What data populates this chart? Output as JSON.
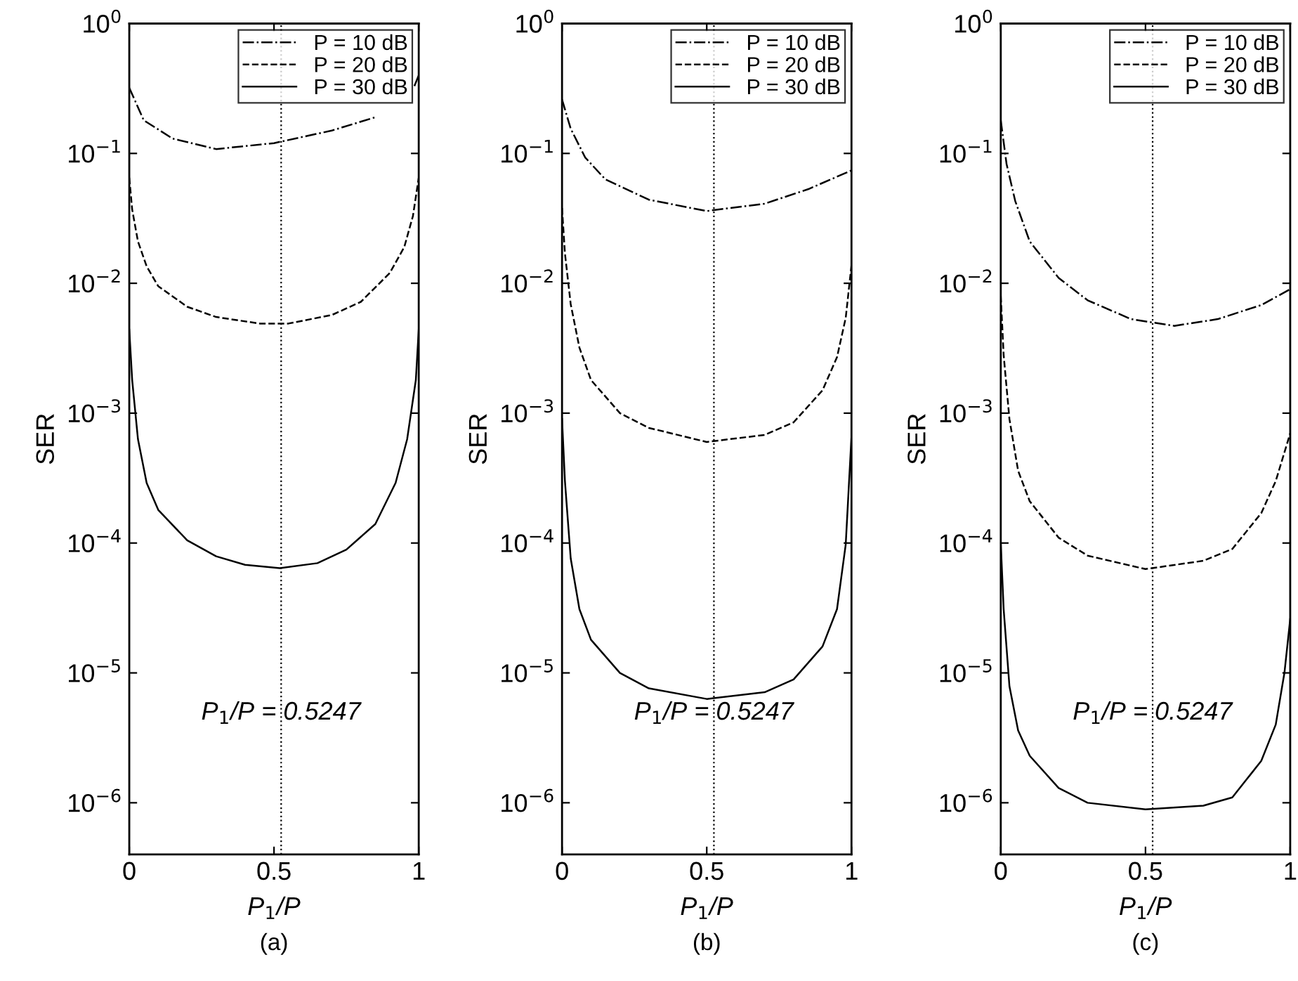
{
  "chart_data": [
    {
      "type": "line",
      "title": "(a)",
      "xlabel": "P$_{1}$/P",
      "ylabel": "SER",
      "log": "y",
      "xlim": [
        0,
        1
      ],
      "ylim": [
        4e-07,
        1
      ],
      "xticks": [
        0,
        0.5,
        1
      ],
      "yticks": [
        {
          "value": 1e-06,
          "label": "10$^{−6}$"
        },
        {
          "value": 1e-05,
          "label": "10$^{−5}$"
        },
        {
          "value": 0.0001,
          "label": "10$^{−4}$"
        },
        {
          "value": 0.001,
          "label": "10$^{−3}$"
        },
        {
          "value": 0.01,
          "label": "10$^{−2}$"
        },
        {
          "value": 0.1,
          "label": "10$^{−1}$"
        },
        {
          "value": 1,
          "label": "10$^{0}$"
        }
      ],
      "legend": "top right",
      "grid": false,
      "ref_lines": [
        {
          "axis": "x",
          "value": 0.5247,
          "label": "P$_{1}$/P = 0.5247",
          "color": "#000000",
          "line_style": "dotted"
        }
      ],
      "series": [
        {
          "name": "P = 10 dB",
          "color": "#000000",
          "line_style": "dashdot",
          "x": [
            0,
            0.05,
            0.15,
            0.3,
            0.5,
            0.7,
            0.85,
            0.9,
            0.985,
            1.0
          ],
          "values": [
            0.32,
            0.18,
            0.13,
            0.108,
            0.12,
            0.15,
            0.19,
            null,
            0.33,
            0.4
          ]
        },
        {
          "name": "P = 20 dB",
          "color": "#000000",
          "line_style": "dashed",
          "x": [
            0,
            0.01,
            0.03,
            0.06,
            0.1,
            0.2,
            0.3,
            0.45,
            0.55,
            0.7,
            0.8,
            0.9,
            0.95,
            0.98,
            1.0
          ],
          "values": [
            0.065,
            0.037,
            0.021,
            0.0135,
            0.0095,
            0.0066,
            0.0055,
            0.0049,
            0.0049,
            0.0057,
            0.0072,
            0.012,
            0.019,
            0.033,
            0.065
          ]
        },
        {
          "name": "P = 30 dB",
          "color": "#000000",
          "line_style": "solid",
          "x": [
            0,
            0.01,
            0.03,
            0.06,
            0.1,
            0.2,
            0.3,
            0.4,
            0.52,
            0.65,
            0.75,
            0.85,
            0.92,
            0.96,
            0.99,
            1.0
          ],
          "values": [
            0.0044,
            0.0018,
            0.00063,
            0.00029,
            0.00018,
            0.000105,
            7.9e-05,
            6.8e-05,
            6.4e-05,
            7e-05,
            8.9e-05,
            0.00014,
            0.00029,
            0.00063,
            0.0018,
            0.0044
          ]
        }
      ]
    },
    {
      "type": "line",
      "title": "(b)",
      "xlabel": "P$_{1}$/P",
      "ylabel": "SER",
      "log": "y",
      "xlim": [
        0,
        1
      ],
      "ylim": [
        4e-07,
        1
      ],
      "xticks": [
        0,
        0.5,
        1
      ],
      "yticks": [
        {
          "value": 1e-06,
          "label": "10$^{−6}$"
        },
        {
          "value": 1e-05,
          "label": "10$^{−5}$"
        },
        {
          "value": 0.0001,
          "label": "10$^{−4}$"
        },
        {
          "value": 0.001,
          "label": "10$^{−3}$"
        },
        {
          "value": 0.01,
          "label": "10$^{−2}$"
        },
        {
          "value": 0.1,
          "label": "10$^{−1}$"
        },
        {
          "value": 1,
          "label": "10$^{0}$"
        }
      ],
      "legend": "top right",
      "grid": false,
      "ref_lines": [
        {
          "axis": "x",
          "value": 0.5247,
          "label": "P$_{1}$/P = 0.5247",
          "color": "#000000",
          "line_style": "dotted"
        }
      ],
      "series": [
        {
          "name": "P = 10 dB",
          "color": "#000000",
          "line_style": "dashdot",
          "x": [
            0,
            0.03,
            0.08,
            0.15,
            0.3,
            0.5,
            0.7,
            0.85,
            1.0
          ],
          "values": [
            0.26,
            0.155,
            0.093,
            0.063,
            0.044,
            0.036,
            0.041,
            0.053,
            0.074
          ]
        },
        {
          "name": "P = 20 dB",
          "color": "#000000",
          "line_style": "dashed",
          "x": [
            0,
            0.01,
            0.03,
            0.06,
            0.1,
            0.2,
            0.3,
            0.5,
            0.7,
            0.8,
            0.9,
            0.95,
            0.98,
            1.0
          ],
          "values": [
            0.038,
            0.017,
            0.0069,
            0.0032,
            0.0018,
            0.001,
            0.00077,
            0.0006,
            0.00068,
            0.00085,
            0.0015,
            0.0027,
            0.0054,
            0.0138
          ]
        },
        {
          "name": "P = 30 dB",
          "color": "#000000",
          "line_style": "solid",
          "x": [
            0,
            0.01,
            0.03,
            0.06,
            0.1,
            0.2,
            0.3,
            0.5,
            0.7,
            0.8,
            0.9,
            0.95,
            0.98,
            1.0
          ],
          "values": [
            0.0009,
            0.0003,
            7.6e-05,
            3.1e-05,
            1.8e-05,
            1e-05,
            7.6e-06,
            6.3e-06,
            7.1e-06,
            8.9e-06,
            1.6e-05,
            3.1e-05,
            9.7e-05,
            0.00066
          ]
        }
      ]
    },
    {
      "type": "line",
      "title": "(c)",
      "xlabel": "P$_{1}$/P",
      "ylabel": "SER",
      "log": "y",
      "xlim": [
        0,
        1
      ],
      "ylim": [
        4e-07,
        1
      ],
      "xticks": [
        0,
        0.5,
        1
      ],
      "yticks": [
        {
          "value": 1e-06,
          "label": "10$^{−6}$"
        },
        {
          "value": 1e-05,
          "label": "10$^{−5}$"
        },
        {
          "value": 0.0001,
          "label": "10$^{−4}$"
        },
        {
          "value": 0.001,
          "label": "10$^{−3}$"
        },
        {
          "value": 0.01,
          "label": "10$^{−2}$"
        },
        {
          "value": 0.1,
          "label": "10$^{−1}$"
        },
        {
          "value": 1,
          "label": "10$^{0}$"
        }
      ],
      "legend": "top right",
      "grid": false,
      "ref_lines": [
        {
          "axis": "x",
          "value": 0.5247,
          "label": "P$_{1}$/P = 0.5247",
          "color": "#000000",
          "line_style": "dotted"
        }
      ],
      "series": [
        {
          "name": "P = 10 dB",
          "color": "#000000",
          "line_style": "dashdot",
          "x": [
            0,
            0.02,
            0.05,
            0.1,
            0.2,
            0.3,
            0.45,
            0.6,
            0.75,
            0.9,
            1.0
          ],
          "values": [
            0.18,
            0.083,
            0.043,
            0.021,
            0.011,
            0.0074,
            0.0053,
            0.0047,
            0.0053,
            0.0068,
            0.009
          ]
        },
        {
          "name": "P = 20 dB",
          "color": "#000000",
          "line_style": "dashed",
          "x": [
            0,
            0.01,
            0.03,
            0.06,
            0.1,
            0.2,
            0.3,
            0.5,
            0.7,
            0.8,
            0.9,
            0.95,
            1.0
          ],
          "values": [
            0.008,
            0.0028,
            0.0009,
            0.00036,
            0.00021,
            0.00011,
            8e-05,
            6.3e-05,
            7.3e-05,
            9e-05,
            0.00017,
            0.0003,
            0.0007
          ]
        },
        {
          "name": "P = 30 dB",
          "color": "#000000",
          "line_style": "solid",
          "x": [
            0,
            0.01,
            0.03,
            0.06,
            0.1,
            0.2,
            0.3,
            0.5,
            0.7,
            0.8,
            0.9,
            0.95,
            0.98,
            1.0
          ],
          "values": [
            0.0001,
            3.1e-05,
            7.9e-06,
            3.6e-06,
            2.3e-06,
            1.3e-06,
            1e-06,
            8.9e-07,
            9.5e-07,
            1.1e-06,
            2.1e-06,
            4e-06,
            1e-05,
            2.6e-05
          ]
        }
      ]
    }
  ]
}
